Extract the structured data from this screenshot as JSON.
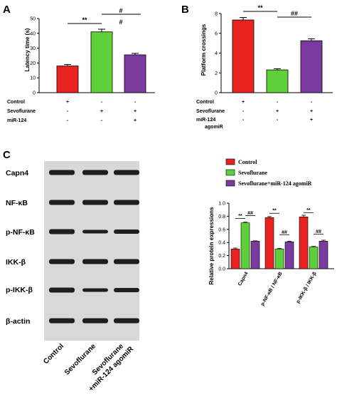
{
  "colors": {
    "control": "#e8231f",
    "sevoflurane": "#5fcf3a",
    "agomir": "#7a3a9e",
    "axis": "#000000",
    "band": "#1e1e1e",
    "blot_bg": "#d8d8d8"
  },
  "panels": {
    "a": {
      "letter": "A"
    },
    "b": {
      "letter": "B"
    },
    "c": {
      "letter": "C"
    }
  },
  "conditions": {
    "labels": [
      "Control",
      "Sevoflurane",
      "miR-124",
      "agomiR"
    ],
    "a_signs": [
      [
        "+",
        "-",
        "-"
      ],
      [
        "-",
        "+",
        "+"
      ],
      [
        "-",
        "-",
        "+"
      ]
    ],
    "b_signs": [
      [
        "+",
        "-",
        "-"
      ],
      [
        "-",
        "+",
        "+"
      ],
      [
        "-",
        "-",
        "+"
      ]
    ]
  },
  "blot": {
    "proteins": [
      "Capn4",
      "NF-κB",
      "p-NF-κB",
      "IKK-β",
      "p-IKK-β",
      "β-actin"
    ],
    "lanes": [
      "Control",
      "Sevoflurane",
      "Sevoflurane",
      "+miR-124 agomiR"
    ]
  },
  "chart_data": [
    {
      "type": "bar",
      "categories": [
        "Control",
        "Sevoflurane",
        "Sevoflurane+miR-124 agomiR"
      ],
      "values": [
        18,
        41,
        25.5
      ],
      "errors": [
        1,
        1.8,
        1
      ],
      "ylabel": "Latency time (s)",
      "ylim": [
        0,
        50
      ],
      "yticks": [
        "0",
        "10",
        "20",
        "30",
        "40",
        "50"
      ],
      "significance": [
        {
          "from": 0,
          "to": 1,
          "label": "**"
        },
        {
          "from": 1,
          "to": 2,
          "label": "#"
        },
        {
          "from": 1,
          "to": 2,
          "label": "#"
        }
      ]
    },
    {
      "type": "bar",
      "categories": [
        "Control",
        "Sevoflurane",
        "Sevoflurane+miR-124 agomiR"
      ],
      "values": [
        7.35,
        2.3,
        5.25
      ],
      "errors": [
        0.25,
        0.12,
        0.2
      ],
      "ylabel": "Platform crossings",
      "ylim": [
        0,
        8
      ],
      "yticks": [
        "0",
        "2",
        "4",
        "6",
        "8"
      ],
      "significance": [
        {
          "from": 0,
          "to": 1,
          "label": "**"
        },
        {
          "from": 1,
          "to": 2,
          "label": "##"
        }
      ]
    },
    {
      "type": "bar",
      "categories": [
        "Capn4",
        "p-NF-κB / NF-κB",
        "p-IKK-β / IKK-β"
      ],
      "series": [
        {
          "name": "Control",
          "values": [
            0.3,
            0.78,
            0.79
          ],
          "errors": [
            0.015,
            0.015,
            0.025
          ]
        },
        {
          "name": "Sevoflurane",
          "values": [
            0.7,
            0.3,
            0.33
          ],
          "errors": [
            0.01,
            0.01,
            0.01
          ]
        },
        {
          "name": "Sevoflurane+miR-124 agomiR",
          "values": [
            0.42,
            0.41,
            0.42
          ],
          "errors": [
            0.005,
            0.01,
            0.015
          ]
        }
      ],
      "ylabel": "Relative protein expressions",
      "ylim": [
        0,
        1
      ],
      "yticks": [
        "0.0",
        "0.2",
        "0.4",
        "0.6",
        "0.8",
        "1.0"
      ],
      "legend_position": "top",
      "significance": [
        {
          "group": 0,
          "from": 0,
          "to": 1,
          "label": "**"
        },
        {
          "group": 0,
          "from": 1,
          "to": 2,
          "label": "##"
        },
        {
          "group": 1,
          "from": 0,
          "to": 1,
          "label": "**"
        },
        {
          "group": 1,
          "from": 1,
          "to": 2,
          "label": "##"
        },
        {
          "group": 2,
          "from": 0,
          "to": 1,
          "label": "**"
        },
        {
          "group": 2,
          "from": 1,
          "to": 2,
          "label": "##"
        }
      ]
    }
  ]
}
